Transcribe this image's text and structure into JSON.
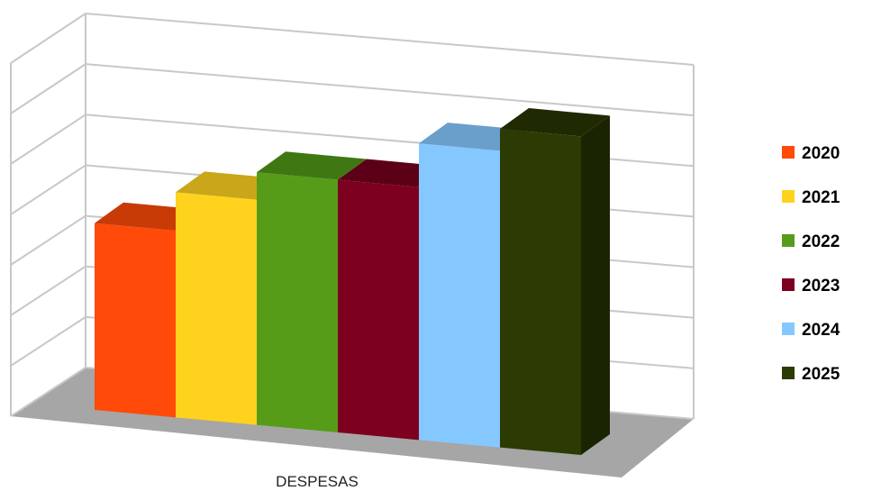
{
  "chart_data": {
    "type": "bar",
    "three_d": true,
    "categories": [
      "DESPESAS"
    ],
    "series": [
      {
        "name": "2020",
        "color": "#ff4a0a",
        "top_color": "#c83a06",
        "side_color": "#b83604",
        "values": [
          3.4
        ]
      },
      {
        "name": "2021",
        "color": "#ffd21e",
        "top_color": "#c9a61a",
        "side_color": "#c9a61a",
        "values": [
          4.1
        ]
      },
      {
        "name": "2022",
        "color": "#569c19",
        "top_color": "#3f7812",
        "side_color": "#3f7812",
        "values": [
          4.6
        ]
      },
      {
        "name": "2023",
        "color": "#7d0020",
        "top_color": "#5c0017",
        "side_color": "#5c0017",
        "values": [
          4.6
        ]
      },
      {
        "name": "2024",
        "color": "#85c8ff",
        "top_color": "#6a9fcc",
        "side_color": "#6a9fcc",
        "values": [
          5.4
        ]
      },
      {
        "name": "2025",
        "color": "#2b3b03",
        "top_color": "#1f2a02",
        "side_color": "#1a2402",
        "values": [
          5.8
        ]
      }
    ],
    "ylim": [
      0,
      7
    ],
    "gridlines": 7,
    "grid": true,
    "legend": "right",
    "floor_color": "#a6a6a6",
    "wall_line_color": "#c8c8c8"
  }
}
